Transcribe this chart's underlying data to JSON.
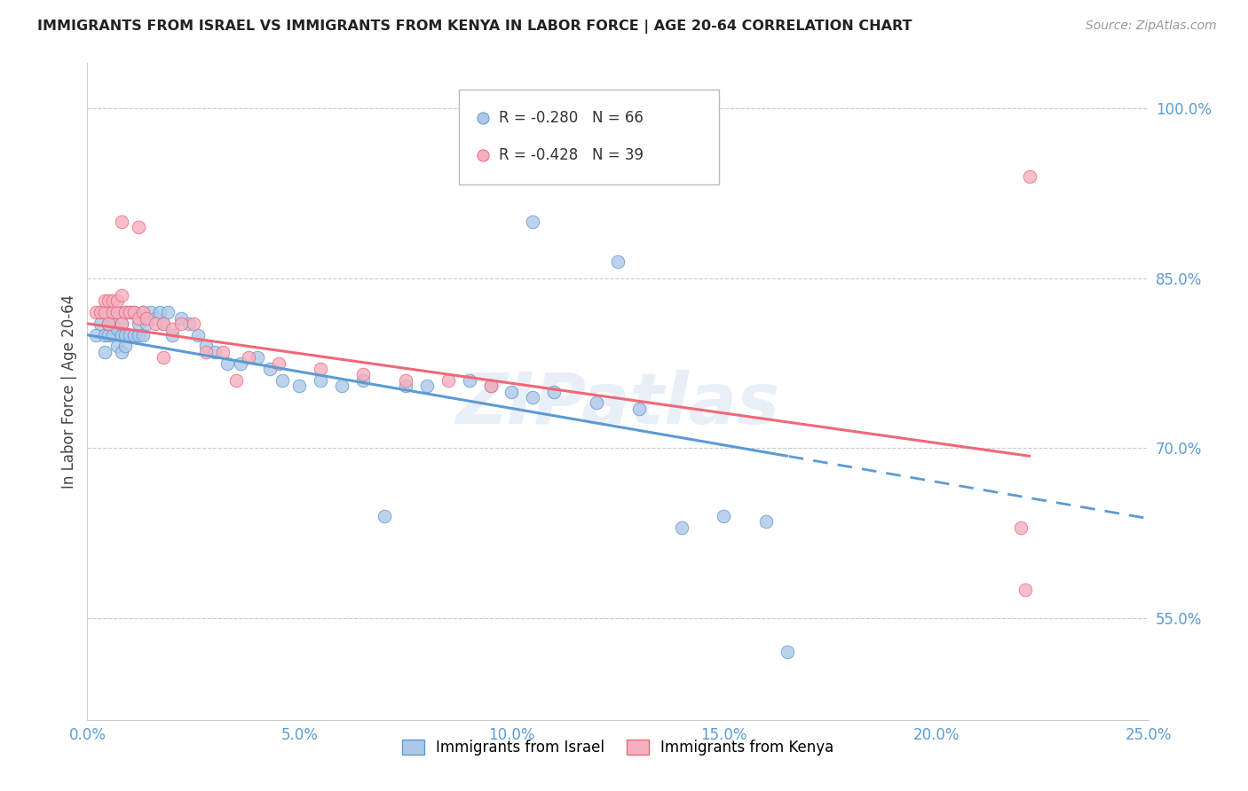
{
  "title": "IMMIGRANTS FROM ISRAEL VS IMMIGRANTS FROM KENYA IN LABOR FORCE | AGE 20-64 CORRELATION CHART",
  "source": "Source: ZipAtlas.com",
  "ylabel": "In Labor Force | Age 20-64",
  "xlim": [
    0.0,
    0.25
  ],
  "ylim": [
    0.46,
    1.04
  ],
  "xticks": [
    0.0,
    0.05,
    0.1,
    0.15,
    0.2,
    0.25
  ],
  "yticks": [
    0.55,
    0.7,
    0.85,
    1.0
  ],
  "ytick_labels": [
    "55.0%",
    "70.0%",
    "85.0%",
    "100.0%"
  ],
  "xtick_labels": [
    "0.0%",
    "5.0%",
    "10.0%",
    "15.0%",
    "20.0%",
    "25.0%"
  ],
  "israel_R": -0.28,
  "israel_N": 66,
  "kenya_R": -0.428,
  "kenya_N": 39,
  "israel_color": "#adc8e8",
  "kenya_color": "#f5b0c0",
  "israel_line_color": "#5b9bd5",
  "kenya_line_color": "#f06878",
  "watermark": "ZIPatlas",
  "israel_line_x0": 0.0,
  "israel_line_y0": 0.8,
  "israel_line_x1": 0.165,
  "israel_line_y1": 0.693,
  "kenya_line_x0": 0.0,
  "kenya_line_y0": 0.81,
  "kenya_line_x1": 0.222,
  "kenya_line_y1": 0.693,
  "israel_scatter_x": [
    0.002,
    0.003,
    0.003,
    0.004,
    0.004,
    0.004,
    0.005,
    0.005,
    0.005,
    0.006,
    0.006,
    0.006,
    0.007,
    0.007,
    0.007,
    0.008,
    0.008,
    0.008,
    0.009,
    0.009,
    0.009,
    0.01,
    0.01,
    0.011,
    0.011,
    0.012,
    0.012,
    0.013,
    0.013,
    0.014,
    0.015,
    0.016,
    0.017,
    0.018,
    0.019,
    0.02,
    0.022,
    0.024,
    0.026,
    0.028,
    0.03,
    0.033,
    0.036,
    0.04,
    0.043,
    0.046,
    0.05,
    0.055,
    0.06,
    0.065,
    0.07,
    0.075,
    0.08,
    0.09,
    0.095,
    0.1,
    0.105,
    0.11,
    0.12,
    0.13,
    0.14,
    0.15,
    0.16,
    0.105,
    0.125,
    0.165
  ],
  "israel_scatter_y": [
    0.8,
    0.81,
    0.82,
    0.785,
    0.8,
    0.82,
    0.8,
    0.81,
    0.82,
    0.8,
    0.81,
    0.82,
    0.79,
    0.805,
    0.82,
    0.785,
    0.8,
    0.81,
    0.79,
    0.8,
    0.82,
    0.8,
    0.82,
    0.8,
    0.82,
    0.8,
    0.81,
    0.8,
    0.82,
    0.81,
    0.82,
    0.815,
    0.82,
    0.81,
    0.82,
    0.8,
    0.815,
    0.81,
    0.8,
    0.79,
    0.785,
    0.775,
    0.775,
    0.78,
    0.77,
    0.76,
    0.755,
    0.76,
    0.755,
    0.76,
    0.64,
    0.755,
    0.755,
    0.76,
    0.755,
    0.75,
    0.745,
    0.75,
    0.74,
    0.735,
    0.63,
    0.64,
    0.635,
    0.9,
    0.865,
    0.52
  ],
  "kenya_scatter_x": [
    0.002,
    0.003,
    0.004,
    0.004,
    0.005,
    0.005,
    0.006,
    0.006,
    0.007,
    0.007,
    0.008,
    0.008,
    0.009,
    0.01,
    0.011,
    0.012,
    0.013,
    0.014,
    0.016,
    0.018,
    0.02,
    0.022,
    0.025,
    0.028,
    0.032,
    0.038,
    0.045,
    0.055,
    0.065,
    0.075,
    0.085,
    0.095,
    0.008,
    0.012,
    0.018,
    0.035,
    0.22,
    0.221,
    0.222
  ],
  "kenya_scatter_y": [
    0.82,
    0.82,
    0.82,
    0.83,
    0.81,
    0.83,
    0.82,
    0.83,
    0.82,
    0.83,
    0.81,
    0.835,
    0.82,
    0.82,
    0.82,
    0.815,
    0.82,
    0.815,
    0.81,
    0.81,
    0.805,
    0.81,
    0.81,
    0.785,
    0.785,
    0.78,
    0.775,
    0.77,
    0.765,
    0.76,
    0.76,
    0.755,
    0.9,
    0.895,
    0.78,
    0.76,
    0.63,
    0.575,
    0.94
  ]
}
